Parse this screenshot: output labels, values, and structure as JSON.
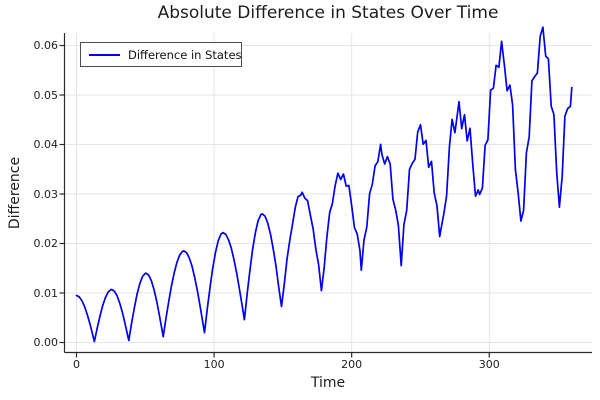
{
  "title": "Absolute Difference in States Over Time",
  "axes": {
    "xlabel": "Time",
    "ylabel": "Difference",
    "x_ticks": {
      "values": [
        0,
        100,
        200,
        300
      ],
      "labels": [
        "0",
        "100",
        "200",
        "300"
      ]
    },
    "y_ticks": {
      "values": [
        0.0,
        0.01,
        0.02,
        0.03,
        0.04,
        0.05,
        0.06
      ],
      "labels": [
        "0.00",
        "0.01",
        "0.02",
        "0.03",
        "0.04",
        "0.05",
        "0.06"
      ]
    }
  },
  "legend": {
    "label": "Difference in States"
  },
  "colors": {
    "series_line": "#0000ee",
    "grid": "#e6e6e6",
    "spine": "#2b2b2b",
    "background": "#ffffff"
  },
  "chart_data": {
    "type": "line",
    "title": "Absolute Difference in States Over Time",
    "xlabel": "Time",
    "ylabel": "Difference",
    "xlim": [
      -8.72,
      374.68
    ],
    "ylim": [
      -0.00202,
      0.06253
    ],
    "grid": true,
    "legend_position": "top-left",
    "x_tick_values": [
      0,
      100,
      200,
      300
    ],
    "y_tick_values": [
      0.0,
      0.01,
      0.02,
      0.03,
      0.04,
      0.05,
      0.06
    ],
    "series": [
      {
        "name": "Difference in States",
        "color": "#0000ee",
        "description": "Oscillation with period ~27 time units; amplitude and baseline grow over time; increasingly noisy after t~150. Keypoints are alternating peak/trough [t, difference] values read from the plot.",
        "keypoints": [
          [
            0,
            0.0095
          ],
          [
            13,
            0.0002
          ],
          [
            25.5,
            0.0107
          ],
          [
            38,
            0.0004
          ],
          [
            50.5,
            0.014
          ],
          [
            63,
            0.0012
          ],
          [
            78,
            0.0185
          ],
          [
            93,
            0.002
          ],
          [
            106.5,
            0.0222
          ],
          [
            122,
            0.0046
          ],
          [
            135,
            0.026
          ],
          [
            149,
            0.0072
          ],
          [
            164,
            0.0302
          ],
          [
            178,
            0.0107
          ],
          [
            192,
            0.034
          ],
          [
            207,
            0.0155
          ],
          [
            222,
            0.0385
          ],
          [
            236,
            0.0175
          ],
          [
            250,
            0.042
          ],
          [
            265,
            0.0205
          ],
          [
            278,
            0.0465
          ],
          [
            293,
            0.0272
          ],
          [
            309,
            0.0578
          ],
          [
            323,
            0.0222
          ],
          [
            339,
            0.061
          ],
          [
            351,
            0.0268
          ],
          [
            360,
            0.0515
          ]
        ],
        "sample_step": 2,
        "noise": {
          "start_t": 140,
          "ramp": 150,
          "max_amp": 0.0036,
          "pattern": [
            0.15,
            -0.45,
            0.85,
            -0.25,
            -0.95,
            0.55,
            1,
            -0.75,
            0.05,
            0.65,
            -0.85,
            0.35,
            -0.6,
            0.9,
            -0.2,
            -1,
            0.45,
            0.75,
            -0.55,
            0.25,
            -0.9,
            0.6,
            -0.35
          ]
        }
      }
    ]
  }
}
